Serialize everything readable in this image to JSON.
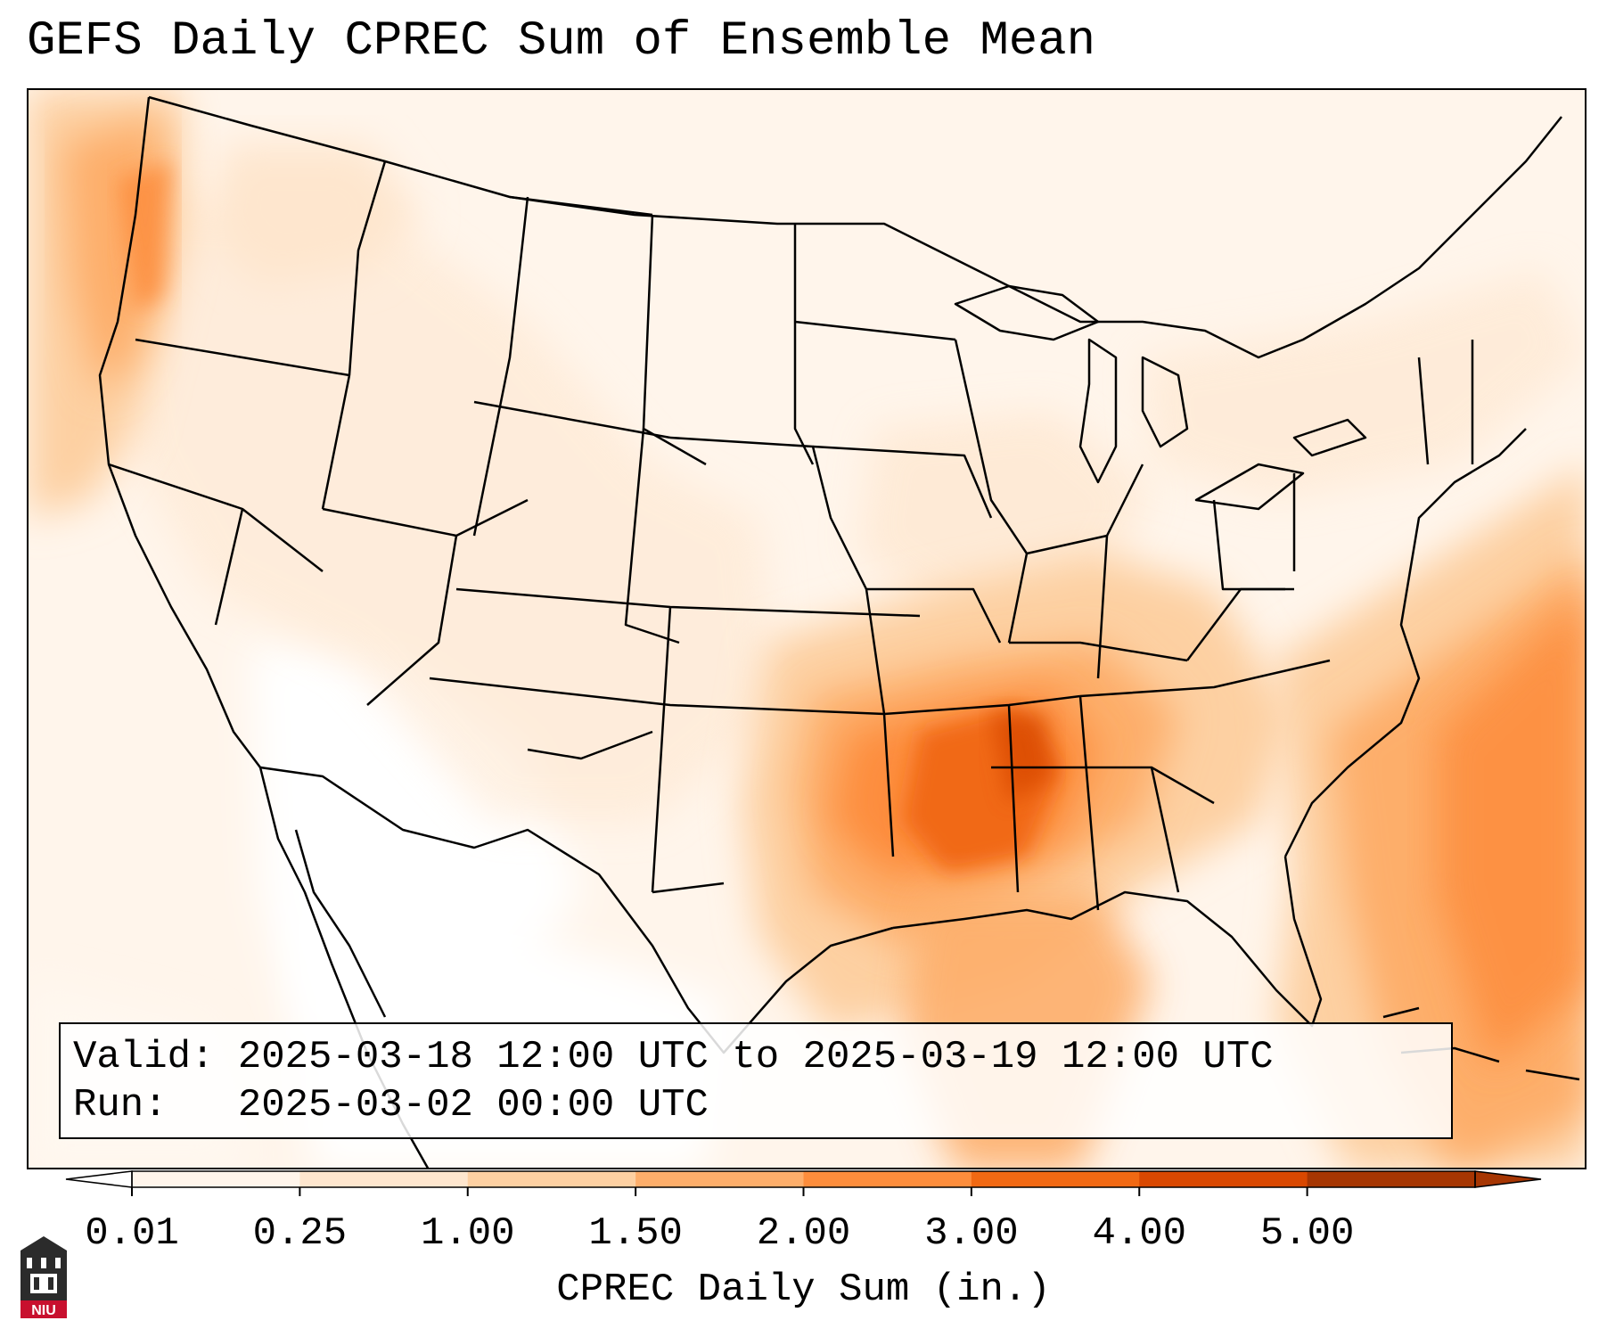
{
  "title": "GEFS Daily CPREC Sum of Ensemble Mean",
  "info": {
    "valid_label": "Valid:",
    "valid_value": "2025-03-18 12:00 UTC to 2025-03-19 12:00 UTC",
    "run_label": "Run:",
    "run_value": "2025-03-02 00:00 UTC"
  },
  "colorbar": {
    "label": "CPREC Daily Sum (in.)",
    "ticks": [
      "0.01",
      "0.25",
      "1.00",
      "1.50",
      "2.00",
      "3.00",
      "4.00",
      "5.00"
    ],
    "colors": [
      "#fff5eb",
      "#fee6ce",
      "#fdd0a2",
      "#fdae6b",
      "#fd8d3c",
      "#f16913",
      "#d94801",
      "#a63603"
    ],
    "under_color": "#ffffff",
    "over_color": "#a63603",
    "extend": "both"
  },
  "logo": {
    "text": "NIU",
    "name": "niu-logo"
  },
  "map": {
    "projection": "lambert-conformal",
    "region": "CONUS",
    "field": "precipitation-shading",
    "max_region": "Lower Mississippi Valley"
  }
}
